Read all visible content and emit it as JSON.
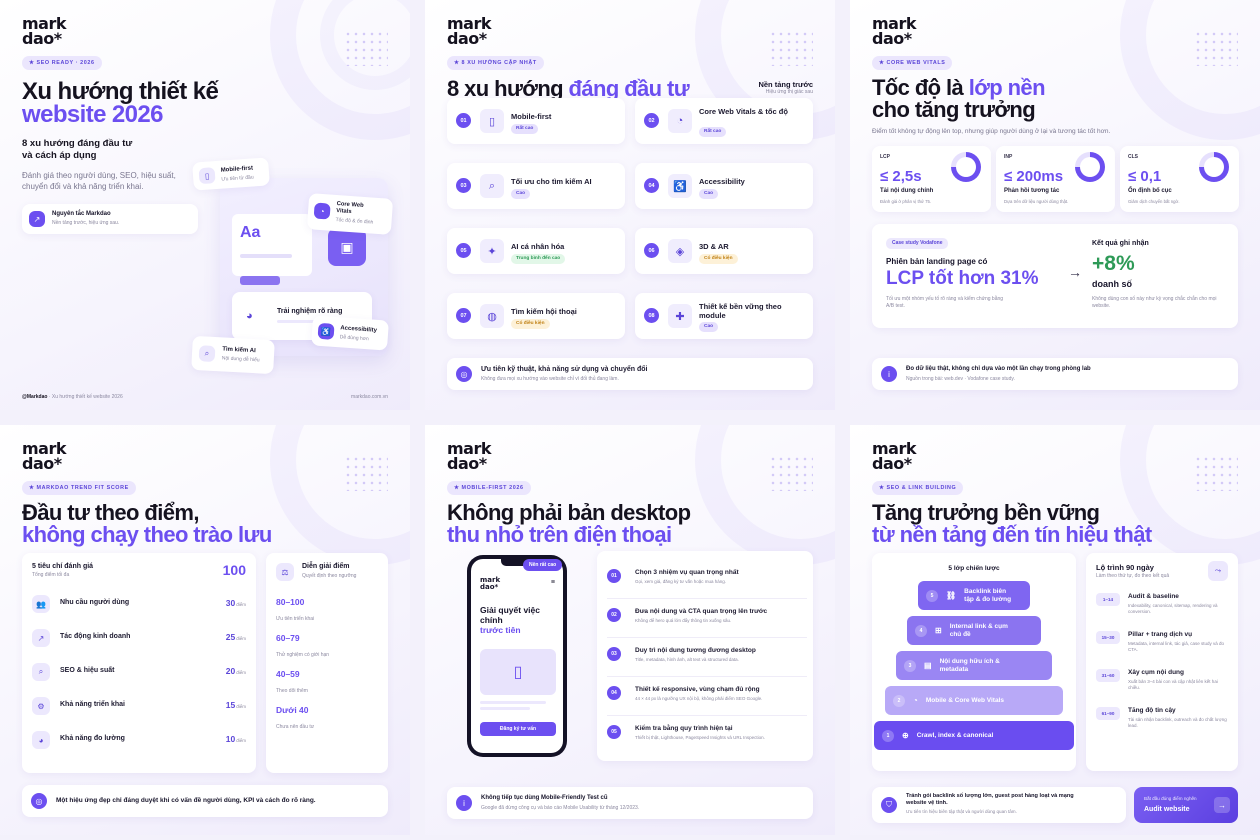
{
  "brand": {
    "logo": "mark\ndao*",
    "handle": "@Markdao",
    "handle_suffix": "· Xu hướng thiết kế website 2026",
    "site": "markdao.com.vn"
  },
  "slide1": {
    "chip": "★ SEO READY · 2026",
    "title_l1": "Xu hướng thiết kế",
    "title_l2": "website 2026",
    "subtitle_l1": "8 xu hướng đáng đầu tư",
    "subtitle_l2": "và cách áp dụng",
    "desc_l1": "Đánh giá theo người dùng, SEO, hiệu suất,",
    "desc_l2": "chuyển đổi và khả năng triển khai.",
    "principle_title": "Nguyên tắc Markdao",
    "principle_sub": "Nền tảng trước, hiệu ứng sau.",
    "float_mobile": "Mobile-first",
    "float_mobile_sub": "Ưu tiên từ đầu",
    "float_cwv_l1": "Core Web",
    "float_cwv_l2": "Vitals",
    "float_cwv_sub": "Tốc độ & ổn định",
    "mock_aa": "Aa",
    "float_ux": "Trải nghiệm rõ ràng",
    "float_access": "Accessibility",
    "float_access_sub": "Dễ dùng hơn",
    "float_ai": "Tìm kiếm AI",
    "float_ai_sub": "Nội dung dễ hiểu"
  },
  "slide2": {
    "chip": "★ 8 XU HƯỚNG CẬP NHẬT",
    "title_a": "8 xu hướng ",
    "title_b": "đáng đầu tư",
    "side_title": "Nền tảng trước",
    "side_sub": "Hiệu ứng thị giác sau",
    "trends": [
      {
        "n": "01",
        "t": "Mobile-first",
        "tag": "Rất cao",
        "lvl": "hi",
        "icon": "▯",
        "icon_name": "phone-icon"
      },
      {
        "n": "02",
        "t": "Core Web Vitals & tốc độ",
        "tag": "Rất cao",
        "lvl": "hi",
        "icon": "◔",
        "icon_name": "gauge-icon"
      },
      {
        "n": "03",
        "t": "Tối ưu cho tìm kiếm AI",
        "tag": "Cao",
        "lvl": "hi",
        "icon": "⌕",
        "icon_name": "search-icon"
      },
      {
        "n": "04",
        "t": "Accessibility",
        "tag": "Cao",
        "lvl": "hi",
        "icon": "♿",
        "icon_name": "accessibility-icon"
      },
      {
        "n": "05",
        "t": "AI cá nhân hóa",
        "tag": "Trung bình đến cao",
        "lvl": "md",
        "icon": "✦",
        "icon_name": "magic-wand-icon"
      },
      {
        "n": "06",
        "t": "3D & AR",
        "tag": "Có điều kiện",
        "lvl": "lo",
        "icon": "◈",
        "icon_name": "cube-icon"
      },
      {
        "n": "07",
        "t": "Tìm kiếm hội thoại",
        "tag": "Có điều kiện",
        "lvl": "lo",
        "icon": "◍",
        "icon_name": "chat-icon"
      },
      {
        "n": "08",
        "t": "Thiết kế bền vững theo module",
        "tag": "Cao",
        "lvl": "hi",
        "icon": "✚",
        "icon_name": "puzzle-icon"
      }
    ],
    "note_title": "Ưu tiên kỹ thuật, khả năng sử dụng và chuyển đổi",
    "note_sub": "Không đưa mọi xu hướng vào website chỉ vì đối thủ đang làm."
  },
  "slide3": {
    "chip": "★ CORE WEB VITALS",
    "title_l1a": "Tốc độ là ",
    "title_l1b": "lớp nền",
    "title_l2": "cho tăng trưởng",
    "desc": "Điểm tốt không tự động lên top, nhưng giúp người dùng ở lại và tương tác tốt hơn.",
    "vitals": [
      {
        "label": "LCP",
        "value": "≤ 2,5s",
        "title": "Tải nội dung chính",
        "sub": "Đánh giá ở phân vị thứ 75.",
        "pct": 0.75
      },
      {
        "label": "INP",
        "value": "≤ 200ms",
        "title": "Phản hồi tương tác",
        "sub": "Dựa trên dữ liệu người dùng thật.",
        "pct": 0.75
      },
      {
        "label": "CLS",
        "value": "≤ 0,1",
        "title": "Ổn định bố cục",
        "sub": "Giảm dịch chuyển bất ngờ.",
        "pct": 0.75
      }
    ],
    "case_chip": "Case study Vodafone",
    "case_l1": "Phiên bản landing page có",
    "case_big": "LCP tốt hơn 31%",
    "case_desc_l1": "Tối ưu một nhóm yếu tố rõ ràng và kiểm chứng bằng",
    "case_desc_l2": "A/B test.",
    "result_label": "Kết quả ghi nhận",
    "result_big": "+8%",
    "result_unit": "doanh số",
    "result_sub_l1": "Không dùng con số này như kỳ vọng chắc chắn cho mọi",
    "result_sub_l2": "website.",
    "note_title": "Đo dữ liệu thật, không chỉ dựa vào một lần chạy trong phòng lab",
    "note_sub": "Nguồn trong bài: web.dev · Vodafone case study."
  },
  "slide4": {
    "chip": "★ MARKDAO TREND FIT SCORE",
    "title_l1": "Đầu tư theo điểm,",
    "title_l2": "không chạy theo trào lưu",
    "card_title": "5 tiêu chí đánh giá",
    "card_sub": "Tổng điểm tối đa",
    "card_total": "100",
    "criteria": [
      {
        "t": "Nhu cầu người dùng",
        "v": "30",
        "icon": "👥",
        "icon_name": "users-icon"
      },
      {
        "t": "Tác động kinh doanh",
        "v": "25",
        "icon": "↗",
        "icon_name": "chart-up-icon"
      },
      {
        "t": "SEO & hiệu suất",
        "v": "20",
        "icon": "⌕",
        "icon_name": "search-icon"
      },
      {
        "t": "Khả năng triển khai",
        "v": "15",
        "icon": "⚙",
        "icon_name": "gear-icon"
      },
      {
        "t": "Khả năng đo lường",
        "v": "10",
        "icon": "◕",
        "icon_name": "pie-chart-icon"
      }
    ],
    "unit": "điểm",
    "legend_title": "Diễn giải điểm",
    "legend_sub": "Quyết định theo ngưỡng",
    "legend": [
      {
        "r": "80–100",
        "d": "Ưu tiên triển khai"
      },
      {
        "r": "60–79",
        "d": "Thử nghiệm có giới hạn"
      },
      {
        "r": "40–59",
        "d": "Theo dõi thêm"
      },
      {
        "r": "Dưới 40",
        "d": "Chưa nên đầu tư"
      }
    ],
    "note": "Một hiệu ứng đẹp chỉ đáng duyệt khi có vấn đề người dùng, KPI và cách đo rõ ràng."
  },
  "slide5": {
    "chip": "★ MOBILE-FIRST 2026",
    "title_l1": "Không phải bản desktop",
    "title_l2": "thu nhỏ trên điện thoại",
    "phone_badge": "Nên rất cao",
    "phone_logo": "mark\ndao*",
    "phone_h_l1": "Giải quyết việc",
    "phone_h_l2": "chính",
    "phone_h_l3": "trước tiên",
    "phone_btn": "Đăng ký tư vấn",
    "steps": [
      {
        "n": "01",
        "t": "Chọn 3 nhiệm vụ quan trọng nhất",
        "s": "Gọi, xem giá, đăng ký tư vấn hoặc mua hàng."
      },
      {
        "n": "02",
        "t": "Đưa nội dung và CTA quan trọng lên trước",
        "s": "Không để hero quá lớn đẩy thông tin xuống sâu."
      },
      {
        "n": "03",
        "t": "Duy trì nội dung tương đương desktop",
        "s": "Title, metadata, hình ảnh, alt text và structured data."
      },
      {
        "n": "04",
        "t": "Thiết kế responsive, vùng chạm đủ rộng",
        "s": "44 × 44 px là ngưỡng UX nội bộ, không phải điểm SEO Google."
      },
      {
        "n": "05",
        "t": "Kiểm tra bằng quy trình hiện tại",
        "s": "Thiết bị thật, Lighthouse, PageSpeed Insights và URL Inspection."
      }
    ],
    "note_title": "Không tiếp tục dùng Mobile-Friendly Test cũ",
    "note_sub": "Google đã dừng công cụ và báo cáo Mobile Usability từ tháng 12/2023."
  },
  "slide6": {
    "chip": "★ SEO & LINK BUILDING",
    "title_l1": "Tăng trưởng bền vững",
    "title_l2": "từ nền tảng đến tín hiệu thật",
    "pyr_title": "5 lớp chiến lược",
    "layers": [
      {
        "n": "5",
        "t1": "Backlink biên",
        "t2": "tập & đo lường",
        "icon": "⛓",
        "icon_name": "link-icon"
      },
      {
        "n": "4",
        "t1": "Internal link & cụm",
        "t2": "chủ đề",
        "icon": "⊞",
        "icon_name": "sitemap-icon"
      },
      {
        "n": "3",
        "t1": "Nội dung hữu ích &",
        "t2": "metadata",
        "icon": "▤",
        "icon_name": "document-icon"
      },
      {
        "n": "2",
        "t1": "Mobile & Core Web Vitals",
        "t2": "",
        "icon": "◔",
        "icon_name": "gauge-icon"
      },
      {
        "n": "1",
        "t1": "Crawl, index & canonical",
        "t2": "",
        "icon": "⊕",
        "icon_name": "globe-icon"
      }
    ],
    "road_title": "Lộ trình 90 ngày",
    "road_sub": "Làm theo thứ tự, đo theo kết quả",
    "road": [
      {
        "p": "1–14",
        "t": "Audit & baseline",
        "s": "Indexability, canonical, sitemap, rendering và conversion."
      },
      {
        "p": "15–30",
        "t": "Pillar + trang dịch vụ",
        "s": "Metadata, internal link, tác giả, case study và đo CTA."
      },
      {
        "p": "31–60",
        "t": "Xây cụm nội dung",
        "s": "Xuất bản 3–4 bài con và cập nhật liên kết hai chiều."
      },
      {
        "p": "61–90",
        "t": "Tăng độ tin cậy",
        "s": "Tài sản nhận backlink, outreach và đo chất lượng lead."
      }
    ],
    "note_title_l1": "Tránh gói backlink số lượng lớn, guest post hàng loạt và mạng",
    "note_title_l2": "website vệ tinh.",
    "note_sub": "Ưu tiên tín hiệu biên tập thật và người dùng quan tâm.",
    "cta_sub": "Bắt đầu đúng điểm nghẽn",
    "cta": "Audit website"
  },
  "colors": {
    "accent": "#6c4ff0",
    "dark": "#15121f",
    "green": "#2e9a57",
    "amber": "#c08013"
  }
}
